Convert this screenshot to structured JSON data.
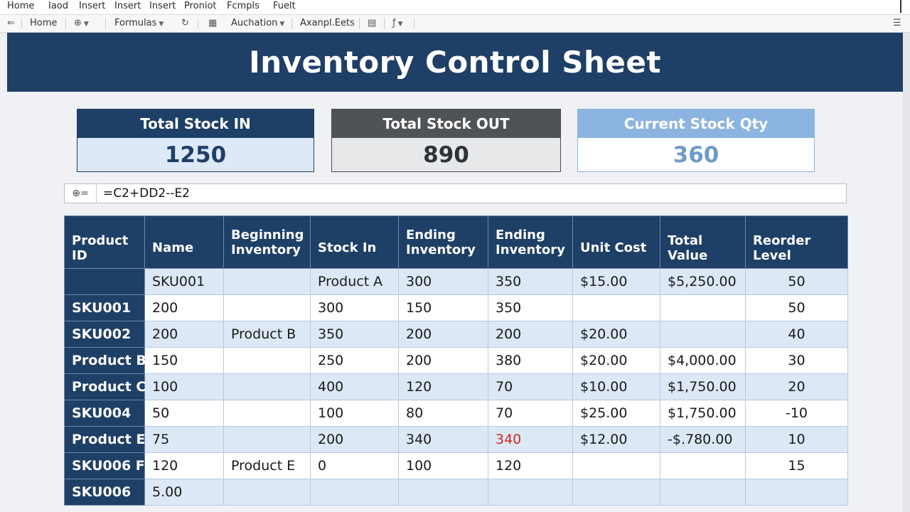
{
  "menu": [
    "Home",
    "Iaod",
    "Insert",
    "Insert",
    "Insert",
    "Proniot",
    "Fcmpls",
    "Fuelt"
  ],
  "toolbar": {
    "home": "Home",
    "formulas": "Formulas",
    "auchation": "Auchation",
    "axample": "Axanpl.Eets"
  },
  "title": "Inventory Control Sheet",
  "summary": {
    "stock_in": {
      "label": "Total Stock IN",
      "value": "1250"
    },
    "stock_out": {
      "label": "Total Stock OUT",
      "value": "890"
    },
    "current": {
      "label": "Current Stock Qty",
      "value": "360"
    }
  },
  "formula": {
    "fx": "⊕=",
    "text": "=C2+DD2--E2"
  },
  "table": {
    "headers": [
      "Product ID",
      "Name",
      "Beginning Inventory",
      "Stock In",
      "Ending Inventory",
      "Ending Inventory",
      "Unit Cost",
      "Total Value",
      "Reorder Level"
    ],
    "rows": [
      [
        "",
        "SKU001",
        "",
        "Product A",
        "300",
        "350",
        "$15.00",
        "$5,250.00",
        "50"
      ],
      [
        "SKU001",
        "200",
        "",
        "300",
        "150",
        "350",
        "",
        "",
        "50"
      ],
      [
        "SKU002",
        "200",
        "Product B",
        "350",
        "200",
        "200",
        "$20.00",
        "",
        "40"
      ],
      [
        "Product B",
        "150",
        "",
        "250",
        "200",
        "380",
        "$20.00",
        "$4,000.00",
        "30"
      ],
      [
        "Product C",
        "100",
        "",
        "400",
        "120",
        "70",
        "$10.00",
        "$1,750.00",
        "20"
      ],
      [
        "SKU004",
        "50",
        "",
        "100",
        "80",
        "70",
        "$25.00",
        "$1,750.00",
        "-10"
      ],
      [
        "Product E",
        "75",
        "",
        "200",
        "340",
        "340",
        "$12.00",
        "-$.780.00",
        "10"
      ],
      [
        "SKU006 F",
        "120",
        "Product E",
        "0",
        "100",
        "120",
        "",
        "",
        "15"
      ],
      [
        "SKU006",
        "5.00",
        "",
        "",
        "",
        "",
        "",
        "",
        ""
      ]
    ],
    "warning_color": "#cc2a20"
  },
  "colors": {
    "navy": "#1e3f66",
    "light_blue": "#dce8f5",
    "sky": "#8bb4e0"
  }
}
